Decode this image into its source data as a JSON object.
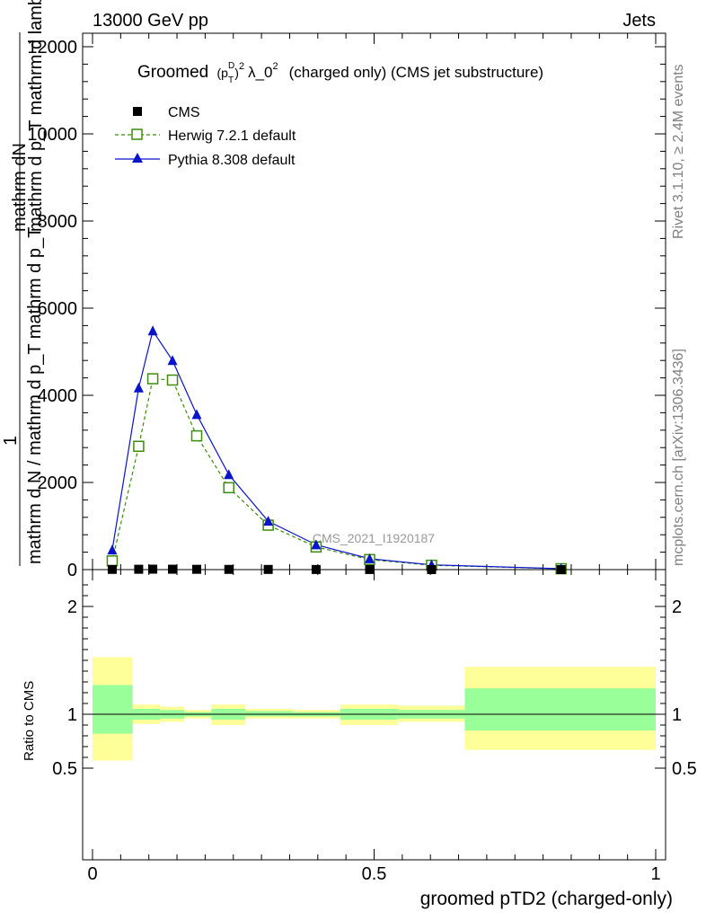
{
  "header": {
    "left": "13000 GeV pp",
    "right": "Jets"
  },
  "side_labels": {
    "rivet": "Rivet 3.1.10, ≥ 2.4M events",
    "mcplots": "mcplots.cern.ch [arXiv:1306.3436]"
  },
  "colors": {
    "cms": "#000000",
    "herwig": "#3d8c0a",
    "pythia": "#0a14c8",
    "band_yellow": "#ffff99",
    "band_green": "#99ff99"
  },
  "chart_data": [
    {
      "type": "line",
      "title": "Groomed (p_T^D)^2 λ_0^2  (charged only) (CMS jet substructure)",
      "title_parts": {
        "pre": "Groomed",
        "pT": "(p",
        "sub": "T",
        "sup": "D",
        "exp": "2",
        "lam": "λ_0",
        "lamexp": "2",
        "post": "(charged only) (CMS jet substructure)"
      },
      "ylabel_top": "mathrm dN",
      "ylabel_top2": "mathrm d p_T mathrm d lambda",
      "ylabel_one": "1",
      "ylabel_bottom": "mathrm d N / mathrm d p_T mathrm d p_T",
      "watermark": "CMS_2021_I1920187",
      "xlim": [
        0,
        1
      ],
      "ylim": [
        0,
        12000
      ],
      "yticks": [
        0,
        2000,
        4000,
        6000,
        8000,
        10000,
        12000
      ],
      "ytick_labels": [
        "0",
        "2000",
        "4000",
        "6000",
        "8000",
        "10000",
        "12000"
      ],
      "legend_position": "top-left",
      "series": [
        {
          "name": "CMS",
          "marker": "square-filled",
          "x": [
            0.035,
            0.082,
            0.107,
            0.142,
            0.185,
            0.242,
            0.312,
            0.397,
            0.492,
            0.602,
            0.832
          ],
          "y": [
            5,
            8,
            10,
            9,
            7,
            5,
            4,
            3,
            2,
            1,
            0
          ]
        },
        {
          "name": "Herwig 7.2.1 default",
          "marker": "square-open",
          "dash": true,
          "x": [
            0.035,
            0.082,
            0.107,
            0.142,
            0.185,
            0.242,
            0.312,
            0.397,
            0.492,
            0.602,
            0.832
          ],
          "y": [
            200,
            2830,
            4380,
            4350,
            3070,
            1880,
            1020,
            520,
            230,
            100,
            20
          ]
        },
        {
          "name": "Pythia 8.308 default",
          "marker": "triangle-filled",
          "x": [
            0.035,
            0.082,
            0.107,
            0.142,
            0.185,
            0.242,
            0.312,
            0.397,
            0.492,
            0.602,
            0.832
          ],
          "y": [
            450,
            4170,
            5480,
            4800,
            3560,
            2180,
            1110,
            570,
            250,
            110,
            20
          ]
        }
      ]
    },
    {
      "type": "area",
      "ylabel": "Ratio to CMS",
      "xlabel": "groomed pTD2 (charged-only)",
      "xlim": [
        0,
        1
      ],
      "ylim": [
        0.3,
        2.3
      ],
      "yticks": [
        0.5,
        1,
        2
      ],
      "ytick_labels": [
        "0.5",
        "1",
        "2"
      ],
      "xticks": [
        0,
        0.5,
        1
      ],
      "xtick_labels": [
        "0",
        "0.5",
        "1"
      ],
      "bins": [
        {
          "lo": 0.0,
          "hi": 0.071,
          "yellow": [
            0.57,
            1.53
          ],
          "green": [
            0.82,
            1.27
          ]
        },
        {
          "lo": 0.071,
          "hi": 0.095,
          "yellow": [
            0.91,
            1.09
          ],
          "green": [
            0.95,
            1.05
          ]
        },
        {
          "lo": 0.095,
          "hi": 0.12,
          "yellow": [
            0.91,
            1.09
          ],
          "green": [
            0.95,
            1.05
          ]
        },
        {
          "lo": 0.12,
          "hi": 0.163,
          "yellow": [
            0.93,
            1.07
          ],
          "green": [
            0.96,
            1.04
          ]
        },
        {
          "lo": 0.163,
          "hi": 0.211,
          "yellow": [
            0.96,
            1.04
          ],
          "green": [
            0.98,
            1.02
          ]
        },
        {
          "lo": 0.211,
          "hi": 0.271,
          "yellow": [
            0.9,
            1.09
          ],
          "green": [
            0.95,
            1.05
          ]
        },
        {
          "lo": 0.271,
          "hi": 0.354,
          "yellow": [
            0.96,
            1.05
          ],
          "green": [
            0.98,
            1.03
          ]
        },
        {
          "lo": 0.354,
          "hi": 0.44,
          "yellow": [
            0.96,
            1.04
          ],
          "green": [
            0.98,
            1.02
          ]
        },
        {
          "lo": 0.44,
          "hi": 0.542,
          "yellow": [
            0.9,
            1.09
          ],
          "green": [
            0.95,
            1.05
          ]
        },
        {
          "lo": 0.542,
          "hi": 0.661,
          "yellow": [
            0.93,
            1.08
          ],
          "green": [
            0.96,
            1.04
          ]
        },
        {
          "lo": 0.661,
          "hi": 1.0,
          "yellow": [
            0.67,
            1.44
          ],
          "green": [
            0.85,
            1.24
          ]
        }
      ],
      "reference": 1
    }
  ]
}
